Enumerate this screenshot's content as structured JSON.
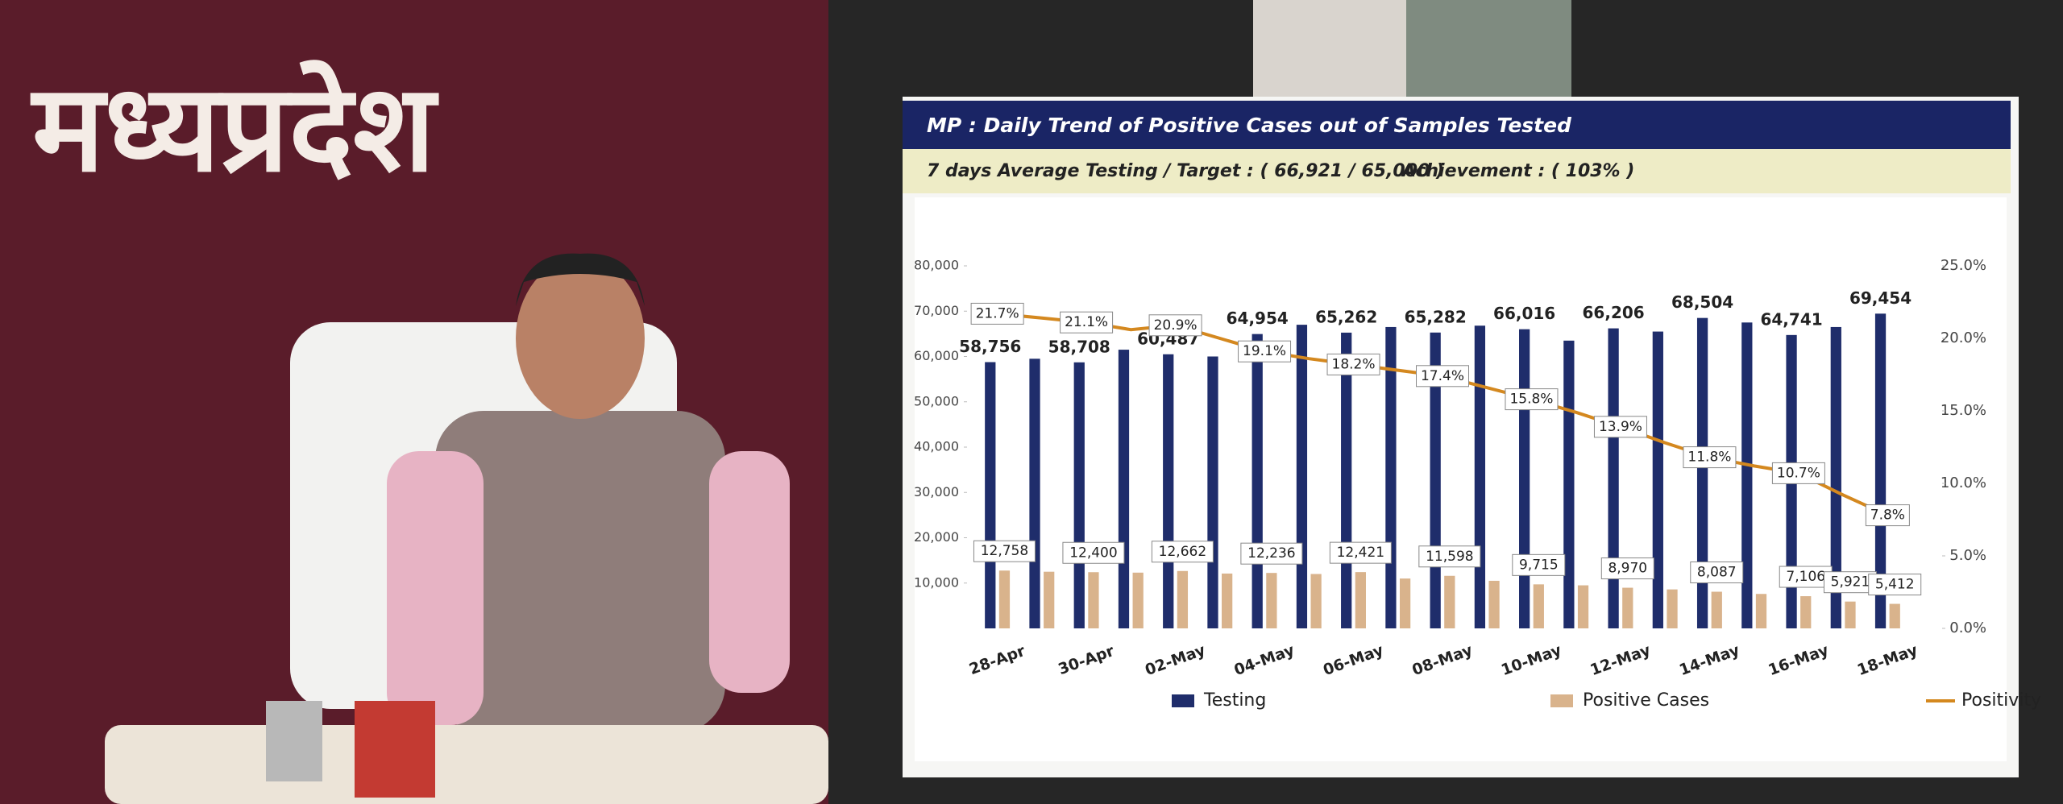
{
  "header": {
    "brand": "मध्यप्रदेश"
  },
  "chart_data": {
    "type": "bar",
    "title": "MP : Daily Trend of Positive Cases out of Samples Tested",
    "subtitle": "7 days Average Testing / Target : ( 66,921 / 65,000 )",
    "annotations": [
      "Achievement : ( 103% )"
    ],
    "categories": [
      "28-Apr",
      null,
      "30-Apr",
      null,
      "02-May",
      null,
      "04-May",
      null,
      "06-May",
      null,
      "08-May",
      null,
      "10-May",
      null,
      "12-May",
      null,
      "14-May",
      null,
      "16-May",
      null,
      "18-May"
    ],
    "series": [
      {
        "name": "Testing",
        "type": "bar",
        "color": "#1f2d6b",
        "values": [
          58756,
          59500,
          58708,
          61500,
          60487,
          60000,
          64954,
          67000,
          65262,
          66500,
          65282,
          66800,
          66016,
          63500,
          66206,
          65500,
          68504,
          67500,
          64741,
          66500,
          69454
        ],
        "value_labels": [
          "58,756",
          null,
          "58,708",
          null,
          "60,487",
          null,
          "64,954",
          null,
          "65,262",
          null,
          "65,282",
          null,
          "66,016",
          null,
          "66,206",
          null,
          "68,504",
          null,
          "64,741",
          null,
          "69,454"
        ]
      },
      {
        "name": "Positive Cases",
        "type": "bar",
        "color": "#d9b38c",
        "values": [
          12758,
          12500,
          12400,
          12300,
          12662,
          12100,
          12236,
          12000,
          12421,
          11000,
          11598,
          10500,
          9715,
          9500,
          8970,
          8600,
          8087,
          7600,
          7106,
          5921,
          5412
        ],
        "value_labels": [
          "12,758",
          null,
          "12,400",
          null,
          "12,662",
          null,
          "12,236",
          null,
          "12,421",
          null,
          "11,598",
          null,
          "9,715",
          null,
          "8,970",
          null,
          "8,087",
          null,
          "7,106",
          "5,921",
          "5,412"
        ]
      },
      {
        "name": "Positivity",
        "type": "line",
        "axis": "y2",
        "color": "#d4881f",
        "values": [
          21.7,
          21.4,
          21.1,
          20.6,
          20.9,
          20.0,
          19.1,
          18.6,
          18.2,
          17.8,
          17.4,
          16.6,
          15.8,
          14.9,
          13.9,
          12.8,
          11.8,
          11.2,
          10.7,
          9.2,
          7.8
        ],
        "value_labels": [
          "21.7%",
          null,
          "21.1%",
          null,
          "20.9%",
          null,
          "19.1%",
          null,
          "18.2%",
          null,
          "17.4%",
          null,
          "15.8%",
          null,
          "13.9%",
          null,
          "11.8%",
          null,
          "10.7%",
          null,
          "7.8%"
        ]
      }
    ],
    "ylim": [
      0,
      80000
    ],
    "yticks": [
      {
        "value": 10000,
        "label": "10,000"
      },
      {
        "value": 20000,
        "label": "20,000"
      },
      {
        "value": 30000,
        "label": "30,000"
      },
      {
        "value": 40000,
        "label": "40,000"
      },
      {
        "value": 50000,
        "label": "50,000"
      },
      {
        "value": 60000,
        "label": "60,000"
      },
      {
        "value": 70000,
        "label": "70,000"
      },
      {
        "value": 80000,
        "label": "80,000"
      }
    ],
    "y2lim": [
      0,
      25
    ],
    "y2ticks": [
      {
        "value": 0,
        "label": "0.0%"
      },
      {
        "value": 5,
        "label": "5.0%"
      },
      {
        "value": 10,
        "label": "10.0%"
      },
      {
        "value": 15,
        "label": "15.0%"
      },
      {
        "value": 20,
        "label": "20.0%"
      },
      {
        "value": 25,
        "label": "25.0%"
      }
    ]
  }
}
